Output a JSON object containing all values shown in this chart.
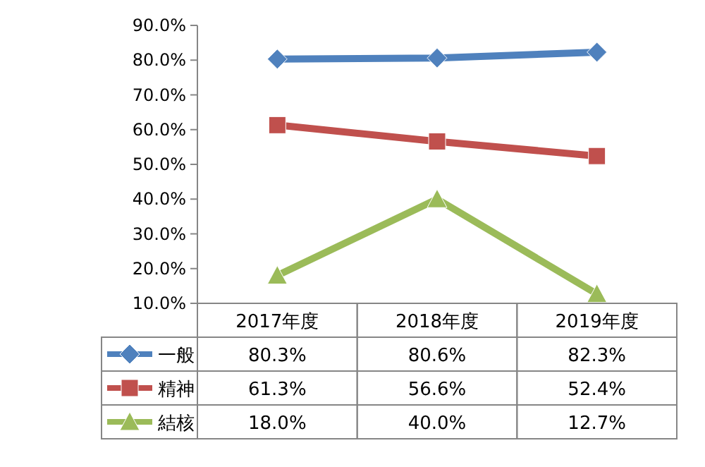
{
  "chart_data": {
    "type": "line",
    "categories": [
      "2017年度",
      "2018年度",
      "2019年度"
    ],
    "series": [
      {
        "name": "一般",
        "color": "#4f81bd",
        "marker": "diamond",
        "values": [
          80.3,
          80.6,
          82.3
        ],
        "value_labels": [
          "80.3%",
          "80.6%",
          "82.3%"
        ]
      },
      {
        "name": "精神",
        "color": "#c0504d",
        "marker": "square",
        "values": [
          61.3,
          56.6,
          52.4
        ],
        "value_labels": [
          "61.3%",
          "56.6%",
          "52.4%"
        ]
      },
      {
        "name": "結核",
        "color": "#9bbb59",
        "marker": "triangle",
        "values": [
          18.0,
          40.0,
          12.7
        ],
        "value_labels": [
          "18.0%",
          "40.0%",
          "12.7%"
        ]
      }
    ],
    "ylim": [
      10,
      90
    ],
    "yticks": [
      {
        "value": 10,
        "label": "10.0%"
      },
      {
        "value": 20,
        "label": "20.0%"
      },
      {
        "value": 30,
        "label": "30.0%"
      },
      {
        "value": 40,
        "label": "40.0%"
      },
      {
        "value": 50,
        "label": "50.0%"
      },
      {
        "value": 60,
        "label": "60.0%"
      },
      {
        "value": 70,
        "label": "70.0%"
      },
      {
        "value": 80,
        "label": "80.0%"
      },
      {
        "value": 90,
        "label": "90.0%"
      }
    ],
    "legend": "bottom",
    "line_style": "solid"
  }
}
